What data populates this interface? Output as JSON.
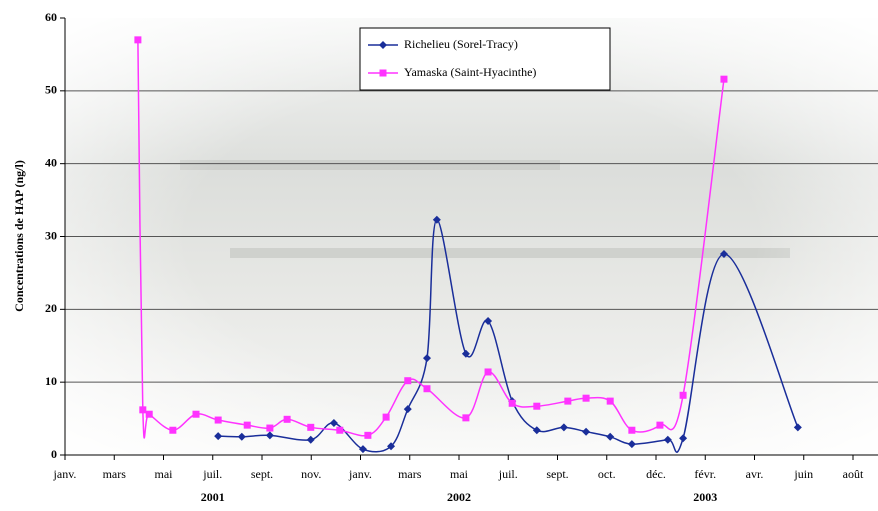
{
  "chart_data": {
    "type": "line",
    "ylabel": "Concentrations de HAP (ng/l)",
    "ylim": [
      0,
      60
    ],
    "yticks": [
      0,
      10,
      20,
      30,
      40,
      50,
      60
    ],
    "grid": true,
    "xlim": [
      0,
      16
    ],
    "xticks": [
      {
        "value": 0,
        "label": "janv."
      },
      {
        "value": 1,
        "label": "mars"
      },
      {
        "value": 2,
        "label": "mai"
      },
      {
        "value": 3,
        "label": "juil."
      },
      {
        "value": 4,
        "label": "sept."
      },
      {
        "value": 5,
        "label": "nov."
      },
      {
        "value": 6,
        "label": "janv."
      },
      {
        "value": 7,
        "label": "mars"
      },
      {
        "value": 8,
        "label": "mai"
      },
      {
        "value": 9,
        "label": "juil."
      },
      {
        "value": 10,
        "label": "sept."
      },
      {
        "value": 11,
        "label": "oct."
      },
      {
        "value": 12,
        "label": "déc."
      },
      {
        "value": 13,
        "label": "févr."
      },
      {
        "value": 14,
        "label": "avr."
      },
      {
        "value": 15,
        "label": "juin"
      },
      {
        "value": 16,
        "label": "août"
      }
    ],
    "year_labels": [
      {
        "label": "2001",
        "x": 3
      },
      {
        "label": "2002",
        "x": 8
      },
      {
        "label": "2003",
        "x": 13
      }
    ],
    "legend": "top",
    "series": [
      {
        "name": "Richelieu (Sorel-Tracy)",
        "color": "#1a2e9a",
        "marker": "diamond",
        "x": [
          3.11,
          3.59,
          4.16,
          4.99,
          5.46,
          6.05,
          6.62,
          6.96,
          7.35,
          7.55,
          8.14,
          8.59,
          9.08,
          9.58,
          10.13,
          10.58,
          11.07,
          11.51,
          12.24,
          12.55,
          13.38,
          14.88
        ],
        "values": [
          2.6,
          2.5,
          2.7,
          2.1,
          4.4,
          0.8,
          1.2,
          6.3,
          13.3,
          32.3,
          13.9,
          18.4,
          7.4,
          3.4,
          3.8,
          3.2,
          2.5,
          1.5,
          2.1,
          2.3,
          27.6,
          3.8
        ]
      },
      {
        "name": "Yamaska (Saint-Hyacinthe)",
        "color": "#ff33ff",
        "marker": "square",
        "x": [
          1.48,
          1.58,
          1.71,
          2.19,
          2.66,
          3.11,
          3.7,
          4.16,
          4.51,
          4.99,
          5.58,
          6.15,
          6.52,
          6.96,
          7.35,
          8.14,
          8.59,
          9.08,
          9.58,
          10.21,
          10.58,
          11.07,
          11.51,
          12.08,
          12.55,
          13.38
        ],
        "values": [
          57,
          6.2,
          5.6,
          3.4,
          5.6,
          4.8,
          4.1,
          3.7,
          4.9,
          3.8,
          3.4,
          2.7,
          5.2,
          10.2,
          9.1,
          5.1,
          11.4,
          7.1,
          6.7,
          7.4,
          7.8,
          7.4,
          3.4,
          4.1,
          8.2,
          51.6
        ]
      }
    ]
  }
}
